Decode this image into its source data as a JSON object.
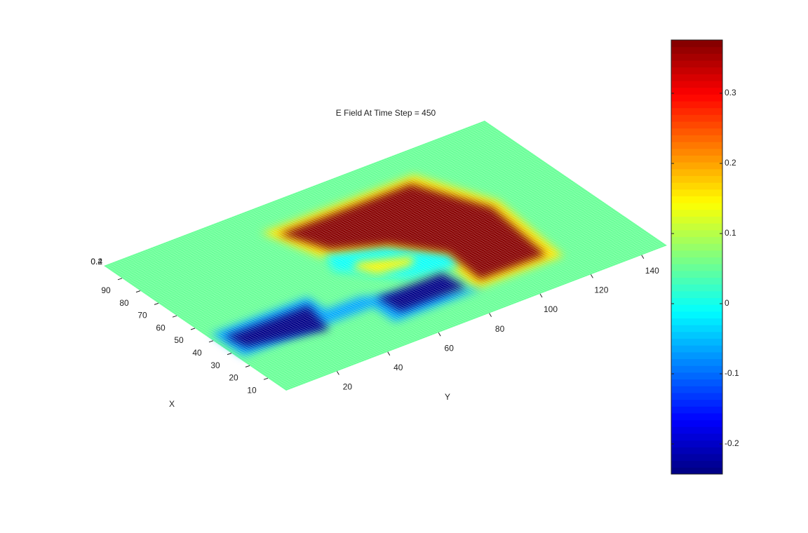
{
  "chart_data": {
    "type": "surface",
    "title": "E Field At Time Step = 450",
    "xlabel": "X",
    "ylabel": "Y",
    "xlim": [
      0,
      100
    ],
    "xticks": [
      10,
      20,
      30,
      40,
      50,
      60,
      70,
      80,
      90
    ],
    "ylim": [
      0,
      150
    ],
    "yticks": [
      20,
      40,
      60,
      80,
      100,
      120,
      140
    ],
    "zticks": [
      0.2,
      0.4
    ],
    "clim": [
      -0.243,
      0.376
    ],
    "cticks": [
      -0.2,
      -0.1,
      0,
      0.1,
      0.2,
      0.3
    ],
    "colormap": "jet",
    "patches": [
      {
        "value": 0.05,
        "x": [
          0,
          100,
          100,
          0
        ],
        "y": [
          0,
          0,
          150,
          150
        ]
      },
      {
        "value": 0.16,
        "x": [
          86,
          86,
          56,
          15,
          15,
          38,
          54,
          62
        ],
        "y": [
          52,
          112,
          124,
          120,
          86,
          88,
          76,
          58
        ]
      },
      {
        "value": -0.01,
        "x": [
          62,
          54,
          38,
          30,
          34,
          46,
          52
        ],
        "y": [
          60,
          78,
          92,
          90,
          72,
          62,
          56
        ]
      },
      {
        "value": 0.15,
        "x": [
          52,
          44,
          40,
          42,
          50
        ],
        "y": [
          66,
          82,
          78,
          66,
          62
        ]
      },
      {
        "value": 0.37,
        "x": [
          82,
          82,
          54,
          19,
          19,
          39,
          55,
          64
        ],
        "y": [
          56,
          108,
          120,
          116,
          90,
          92,
          80,
          63
        ]
      },
      {
        "value": -0.06,
        "x": [
          44,
          44,
          34,
          34,
          14,
          14,
          26,
          26
        ],
        "y": [
          2,
          40,
          40,
          53,
          88,
          53,
          53,
          2
        ]
      },
      {
        "value": -0.24,
        "x": [
          30,
          30,
          18,
          18
        ],
        "y": [
          57,
          83,
          84,
          58
        ]
      },
      {
        "value": -0.24,
        "x": [
          40,
          39.7,
          23,
          30
        ],
        "y": [
          4.3,
          37.3,
          33.5,
          5.8
        ]
      }
    ]
  }
}
